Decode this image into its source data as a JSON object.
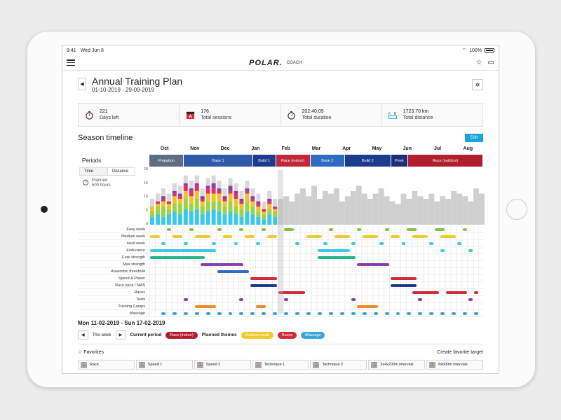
{
  "status": {
    "time": "9:41",
    "date": "Wed Jun 8",
    "battery": "100%"
  },
  "app": {
    "logo": "POLAR.",
    "sub": "COACH"
  },
  "plan": {
    "title": "Annual Training Plan",
    "dates": "01-10-2019 - 29-09-2019"
  },
  "stats": [
    {
      "icon": "timer-icon",
      "value": "221",
      "label": "Days left"
    },
    {
      "icon": "calendar-icon",
      "value": "176",
      "label": "Total sessions"
    },
    {
      "icon": "stopwatch-icon",
      "value": "202:40:05",
      "label": "Total duration"
    },
    {
      "icon": "distance-icon",
      "value": "1723.70 km",
      "label": "Total distance"
    }
  ],
  "season": {
    "title": "Season timeline",
    "edit": "Edit"
  },
  "periods_label": "Periods",
  "toggle": {
    "time": "Time",
    "distance": "Distance"
  },
  "planned": {
    "line1": "Planned",
    "line2": "500 hours"
  },
  "months": [
    "Oct",
    "Nov",
    "Dec",
    "Jan",
    "Feb",
    "Mar",
    "Apr",
    "May",
    "Jun",
    "Jul",
    "Aug"
  ],
  "periods": [
    {
      "name": "Prepation",
      "color": "#5d6d86",
      "weeks": 6
    },
    {
      "name": "Base 1",
      "color": "#2f5aa8",
      "weeks": 12
    },
    {
      "name": "Build 1",
      "color": "#1e3c8c",
      "weeks": 4
    },
    {
      "name": "Race (indoor)",
      "color": "#c0273a",
      "weeks": 6
    },
    {
      "name": "Base 2",
      "color": "#2f6bc2",
      "weeks": 6
    },
    {
      "name": "Build 2",
      "color": "#1e3c8c",
      "weeks": 8
    },
    {
      "name": "Peek",
      "color": "#1b2f78",
      "weeks": 3
    },
    {
      "name": "Race (outdoor)",
      "color": "#b11e30",
      "weeks": 13
    }
  ],
  "yaxis": [
    "20",
    "15",
    "10",
    "5",
    "0"
  ],
  "chart_data": {
    "type": "bar",
    "ylim": [
      0,
      20
    ],
    "past_weeks": 23,
    "stack_colors": [
      "#3ec7e8",
      "#9ad24a",
      "#f2c22e",
      "#e8315a",
      "#8a3fb1"
    ],
    "stacks": [
      [
        3,
        2,
        2,
        0,
        0
      ],
      [
        4,
        3,
        1,
        1,
        0
      ],
      [
        3,
        4,
        2,
        1,
        1
      ],
      [
        4,
        2,
        2,
        1,
        0
      ],
      [
        5,
        3,
        3,
        1,
        1
      ],
      [
        4,
        4,
        2,
        1,
        1
      ],
      [
        6,
        4,
        3,
        2,
        1
      ],
      [
        5,
        3,
        3,
        2,
        1
      ],
      [
        6,
        4,
        3,
        2,
        1
      ],
      [
        4,
        3,
        2,
        1,
        1
      ],
      [
        5,
        4,
        3,
        2,
        1
      ],
      [
        6,
        3,
        3,
        2,
        2
      ],
      [
        5,
        4,
        3,
        1,
        1
      ],
      [
        4,
        3,
        2,
        1,
        1
      ],
      [
        5,
        4,
        3,
        1,
        2
      ],
      [
        4,
        3,
        3,
        2,
        1
      ],
      [
        3,
        3,
        2,
        1,
        1
      ],
      [
        5,
        4,
        3,
        1,
        1
      ],
      [
        4,
        3,
        2,
        1,
        1
      ],
      [
        3,
        2,
        2,
        1,
        1
      ],
      [
        2,
        2,
        1,
        1,
        0
      ],
      [
        4,
        2,
        2,
        1,
        1
      ],
      [
        3,
        2,
        1,
        1,
        0
      ]
    ],
    "future": [
      10,
      11,
      9,
      12,
      14,
      11,
      15,
      10,
      13,
      12,
      14,
      9,
      11,
      13,
      15,
      12,
      10,
      12,
      14,
      11,
      9,
      8,
      12,
      10,
      13,
      11,
      10,
      12,
      9,
      11,
      10,
      13,
      12,
      11,
      9,
      14,
      12,
      10,
      9,
      8
    ]
  },
  "themes": [
    {
      "name": "Easy week",
      "color": "#86c241",
      "segs": [
        [
          3,
          1
        ],
        [
          7,
          1
        ],
        [
          12,
          1
        ],
        [
          16,
          1
        ],
        [
          20,
          1
        ],
        [
          24,
          2
        ],
        [
          32,
          1
        ],
        [
          37,
          1
        ],
        [
          42,
          1
        ],
        [
          46,
          2
        ],
        [
          51,
          2
        ],
        [
          56,
          1
        ]
      ]
    },
    {
      "name": "Medium week",
      "color": "#f2c92e",
      "segs": [
        [
          0,
          2
        ],
        [
          4,
          2
        ],
        [
          8,
          3
        ],
        [
          13,
          2
        ],
        [
          17,
          2
        ],
        [
          21,
          2
        ],
        [
          28,
          3
        ],
        [
          33,
          3
        ],
        [
          38,
          3
        ],
        [
          43,
          2
        ],
        [
          47,
          3
        ],
        [
          52,
          3
        ]
      ]
    },
    {
      "name": "Hard week",
      "color": "#3ec7e8",
      "segs": [
        [
          2,
          1
        ],
        [
          6,
          1
        ],
        [
          11,
          1
        ],
        [
          15,
          1
        ],
        [
          19,
          1
        ],
        [
          26,
          1
        ],
        [
          31,
          1
        ],
        [
          36,
          1
        ],
        [
          41,
          1
        ],
        [
          45,
          1
        ],
        [
          50,
          1
        ],
        [
          55,
          1
        ]
      ]
    },
    {
      "name": "Endurance",
      "color": "#3ec7e8",
      "segs": [
        [
          0,
          12
        ],
        [
          30,
          6
        ],
        [
          52,
          1
        ],
        [
          57,
          1
        ]
      ]
    },
    {
      "name": "Core strength",
      "color": "#1fb88a",
      "segs": [
        [
          0,
          10
        ],
        [
          30,
          7
        ]
      ]
    },
    {
      "name": "Max strength",
      "color": "#8a3fb1",
      "segs": [
        [
          9,
          8
        ],
        [
          37,
          6
        ]
      ]
    },
    {
      "name": "Anaerobic threshold",
      "color": "#2f6bc2",
      "segs": [
        [
          12,
          6
        ]
      ]
    },
    {
      "name": "Speed & Power",
      "color": "#d22a3d",
      "segs": [
        [
          18,
          5
        ],
        [
          43,
          5
        ]
      ]
    },
    {
      "name": "Race pace / MAS",
      "color": "#1e3c8c",
      "segs": [
        [
          18,
          5
        ],
        [
          43,
          5
        ]
      ]
    },
    {
      "name": "Races",
      "color": "#d22a3d",
      "segs": [
        [
          23,
          5
        ],
        [
          47,
          5
        ],
        [
          53,
          4
        ],
        [
          58,
          1
        ]
      ]
    },
    {
      "name": "Tests",
      "color": "#8a3fb1",
      "segs": [
        [
          6,
          1
        ],
        [
          16,
          1
        ],
        [
          24,
          1
        ],
        [
          36,
          1
        ],
        [
          48,
          1
        ],
        [
          57,
          1
        ]
      ]
    },
    {
      "name": "Training Camps",
      "color": "#f08a24",
      "segs": [
        [
          8,
          4
        ],
        [
          19,
          2
        ],
        [
          37,
          4
        ]
      ]
    },
    {
      "name": "Massage",
      "color": "#3aa6d8",
      "segs": [
        [
          2,
          1
        ],
        [
          4,
          1
        ],
        [
          6,
          1
        ],
        [
          8,
          1
        ],
        [
          10,
          1
        ],
        [
          12,
          1
        ],
        [
          14,
          1
        ],
        [
          16,
          1
        ],
        [
          18,
          1
        ],
        [
          20,
          1
        ],
        [
          22,
          1
        ],
        [
          24,
          1
        ],
        [
          26,
          1
        ],
        [
          28,
          1
        ],
        [
          30,
          1
        ],
        [
          32,
          1
        ],
        [
          34,
          1
        ],
        [
          36,
          1
        ],
        [
          38,
          1
        ],
        [
          40,
          1
        ],
        [
          42,
          1
        ],
        [
          44,
          1
        ],
        [
          46,
          1
        ],
        [
          48,
          1
        ],
        [
          50,
          1
        ],
        [
          52,
          1
        ],
        [
          54,
          1
        ],
        [
          56,
          1
        ],
        [
          58,
          1
        ]
      ]
    }
  ],
  "week": {
    "range": "Mon 11-02-2019 - Sun 17-02-2019",
    "this_week": "This week",
    "current_period": "Current period",
    "current_period_value": "Race (indoor)",
    "planned_themes": "Planned themes"
  },
  "planned_theme_pills": [
    {
      "label": "Medium week",
      "color": "#f2c92e"
    },
    {
      "label": "Races",
      "color": "#d22a3d"
    },
    {
      "label": "Massage",
      "color": "#3aa6d8"
    }
  ],
  "favorites": {
    "title": "Favorites",
    "create": "Create favorite target"
  },
  "favorite_items": [
    "Race",
    "Speed 1",
    "Speed 2",
    "Technique 1",
    "Technique 2",
    "3x4x200m intervals",
    "8x600m intervals"
  ]
}
